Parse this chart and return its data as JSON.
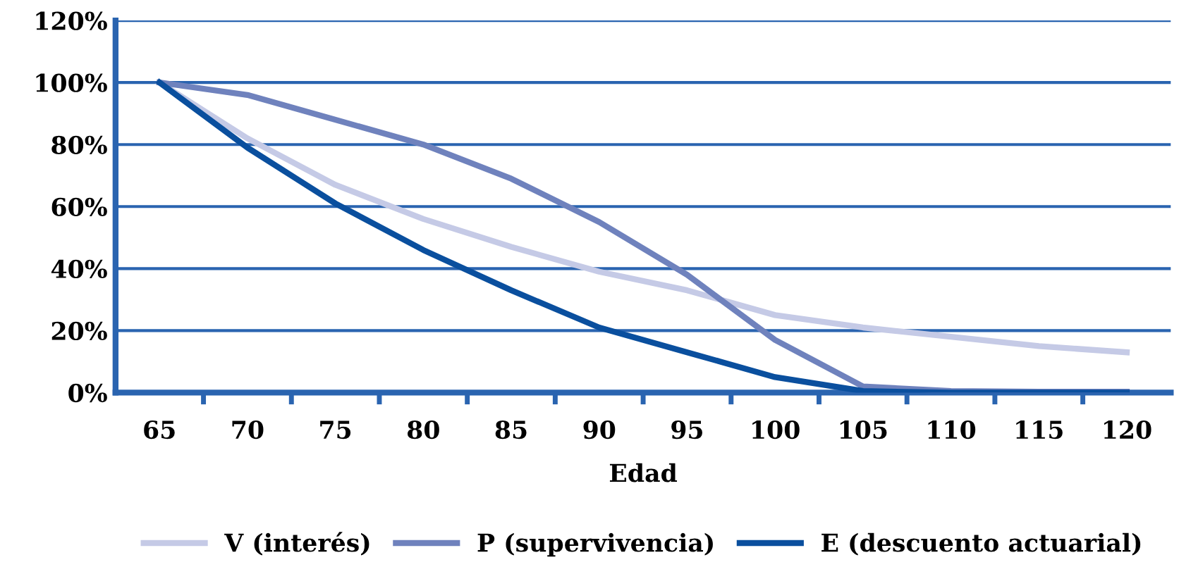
{
  "chart_data": {
    "type": "line",
    "xlabel": "Edad",
    "categories": [
      "65",
      "70",
      "75",
      "80",
      "85",
      "90",
      "95",
      "100",
      "105",
      "110",
      "115",
      "120"
    ],
    "series": [
      {
        "name": "V (interés)",
        "color": "#c5cae6",
        "values": [
          100,
          82,
          67,
          56,
          47,
          39,
          33,
          25,
          21,
          18,
          15,
          13
        ]
      },
      {
        "name": "P (supervivencia)",
        "color": "#6f82bd",
        "values": [
          100,
          96,
          88,
          80,
          69,
          55,
          38,
          17,
          2,
          0.5,
          0.3,
          0.3
        ]
      },
      {
        "name": "E (descuento actuarial)",
        "color": "#0a4f9e",
        "values": [
          100,
          79,
          61,
          46,
          33,
          21,
          13,
          5,
          0.5,
          0,
          0,
          0
        ]
      }
    ],
    "ylim": [
      0,
      120
    ],
    "yticks": [
      {
        "value": 0,
        "label": "0%"
      },
      {
        "value": 20,
        "label": "20%"
      },
      {
        "value": 40,
        "label": "40%"
      },
      {
        "value": 60,
        "label": "60%"
      },
      {
        "value": 80,
        "label": "80%"
      },
      {
        "value": 100,
        "label": "100%"
      },
      {
        "value": 120,
        "label": "120%"
      }
    ],
    "grid": "y",
    "legend": "bottom",
    "marker": "none",
    "line_style": "solid"
  }
}
